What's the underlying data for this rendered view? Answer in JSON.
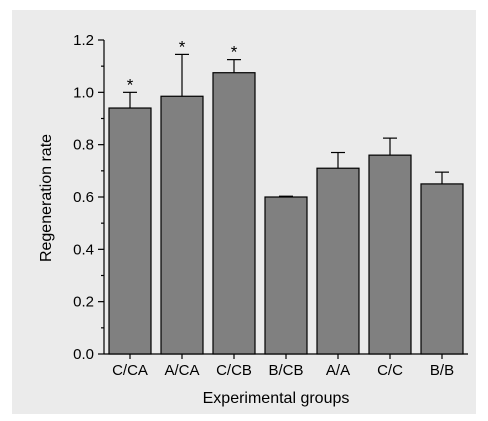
{
  "chart_data": {
    "type": "bar",
    "xlabel": "Experimental groups",
    "ylabel": "Regeneration rate",
    "categories": [
      "C/CA",
      "A/CA",
      "C/CB",
      "B/CB",
      "A/A",
      "C/C",
      "B/B"
    ],
    "values": [
      0.94,
      0.985,
      1.075,
      0.6,
      0.71,
      0.76,
      0.65
    ],
    "error_upper": [
      1.0,
      1.145,
      1.125,
      0.603,
      0.77,
      0.825,
      0.695
    ],
    "significance": [
      "*",
      "*",
      "*",
      "",
      "",
      "",
      ""
    ],
    "ylim": [
      0,
      1.2
    ],
    "yticks": [
      "0.0",
      "0.2",
      "0.4",
      "0.6",
      "0.8",
      "1.0",
      "1.2"
    ],
    "ytick_values": [
      0,
      0.2,
      0.4,
      0.6,
      0.8,
      1.0,
      1.2
    ],
    "grid": false,
    "legend": "none",
    "colors": {
      "bar": "#808080",
      "background": "#ebebeb"
    }
  }
}
